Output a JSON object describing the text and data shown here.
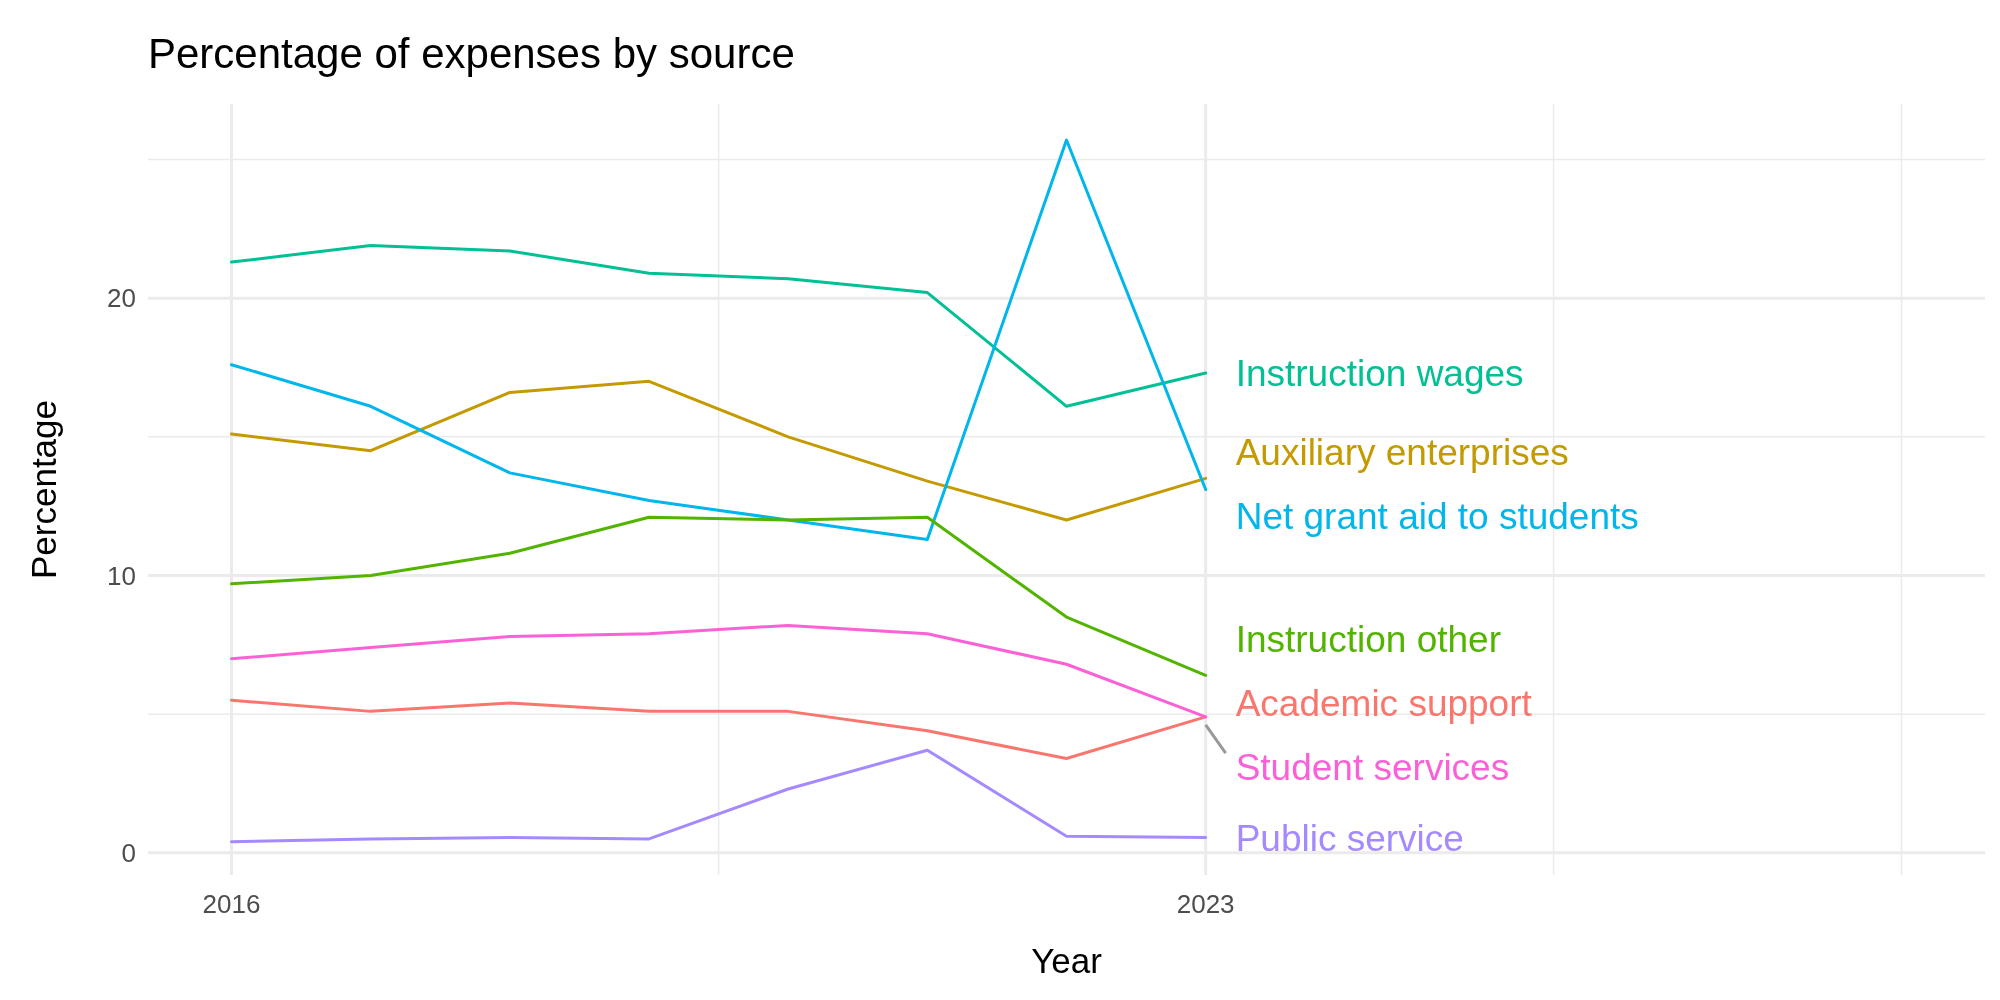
{
  "chart_data": {
    "type": "line",
    "title": "Percentage of expenses by source",
    "xlabel": "Year",
    "ylabel": "Percentage",
    "x": [
      2016,
      2017,
      2018,
      2019,
      2020,
      2021,
      2022,
      2023
    ],
    "xlim": [
      2015.4,
      2028.6
    ],
    "xticks": [
      2016,
      {
        "value": 2019.5,
        "label": null
      },
      2023,
      {
        "value": 2025.5,
        "label": null
      },
      {
        "value": 2028,
        "label": null
      }
    ],
    "ylim": [
      -0.8,
      27
    ],
    "yticks": [
      0,
      {
        "value": 5,
        "label": null
      },
      10,
      {
        "value": 15,
        "label": null
      },
      20,
      {
        "value": 25,
        "label": null
      }
    ],
    "grid": true,
    "line_style": "solid",
    "marker": "none",
    "series": [
      {
        "name": "Instruction wages",
        "color": "#00c094",
        "values": [
          21.3,
          21.9,
          21.7,
          20.9,
          20.7,
          20.2,
          16.1,
          17.3
        ]
      },
      {
        "name": "Auxiliary enterprises",
        "color": "#c49a00",
        "values": [
          15.1,
          14.5,
          16.6,
          17.0,
          15.0,
          13.4,
          12.0,
          13.5
        ]
      },
      {
        "name": "Net grant aid to students",
        "color": "#00b6eb",
        "values": [
          17.6,
          16.1,
          13.7,
          12.7,
          12.0,
          11.3,
          25.7,
          13.1
        ]
      },
      {
        "name": "Instruction other",
        "color": "#53b400",
        "values": [
          9.7,
          10.0,
          10.8,
          12.1,
          12.0,
          12.1,
          8.5,
          6.4
        ]
      },
      {
        "name": "Academic support",
        "color": "#f8766d",
        "values": [
          5.5,
          5.1,
          5.4,
          5.1,
          5.1,
          4.4,
          3.4,
          4.9
        ]
      },
      {
        "name": "Student services",
        "color": "#fb61d7",
        "values": [
          7.0,
          7.4,
          7.8,
          7.9,
          8.2,
          7.9,
          6.8,
          4.9
        ]
      },
      {
        "name": "Public service",
        "color": "#a58aff",
        "values": [
          0.4,
          0.5,
          0.55,
          0.5,
          2.3,
          3.7,
          0.6,
          0.55
        ]
      }
    ]
  }
}
